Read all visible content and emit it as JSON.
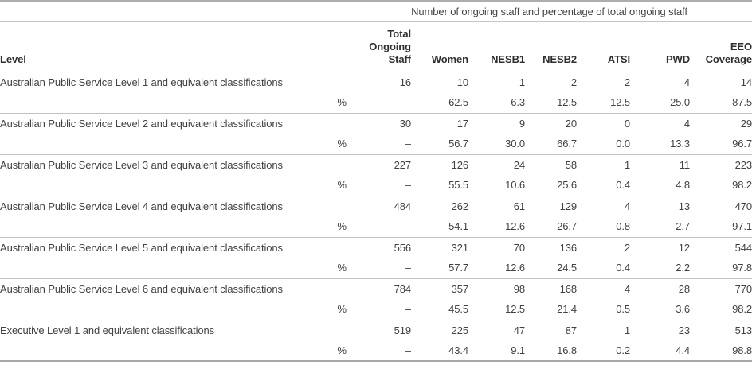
{
  "table": {
    "span_header": "Number of ongoing staff and percentage of total ongoing staff",
    "pct_symbol": "%",
    "columns": [
      "Level",
      "",
      "Total Ongoing Staff",
      "Women",
      "NESB1",
      "NESB2",
      "ATSI",
      "PWD",
      "EEO Coverage"
    ],
    "rows": [
      {
        "level": "Australian Public Service Level 1 and equivalent classifications",
        "counts": [
          "16",
          "10",
          "1",
          "2",
          "2",
          "4",
          "14"
        ],
        "percentages": [
          "–",
          "62.5",
          "6.3",
          "12.5",
          "12.5",
          "25.0",
          "87.5"
        ]
      },
      {
        "level": "Australian Public Service Level 2 and equivalent classifications",
        "counts": [
          "30",
          "17",
          "9",
          "20",
          "0",
          "4",
          "29"
        ],
        "percentages": [
          "–",
          "56.7",
          "30.0",
          "66.7",
          "0.0",
          "13.3",
          "96.7"
        ]
      },
      {
        "level": "Australian Public Service Level 3 and equivalent classifications",
        "counts": [
          "227",
          "126",
          "24",
          "58",
          "1",
          "11",
          "223"
        ],
        "percentages": [
          "–",
          "55.5",
          "10.6",
          "25.6",
          "0.4",
          "4.8",
          "98.2"
        ]
      },
      {
        "level": "Australian Public Service Level 4 and equivalent classifications",
        "counts": [
          "484",
          "262",
          "61",
          "129",
          "4",
          "13",
          "470"
        ],
        "percentages": [
          "–",
          "54.1",
          "12.6",
          "26.7",
          "0.8",
          "2.7",
          "97.1"
        ]
      },
      {
        "level": "Australian Public Service Level 5 and equivalent classifications",
        "counts": [
          "556",
          "321",
          "70",
          "136",
          "2",
          "12",
          "544"
        ],
        "percentages": [
          "–",
          "57.7",
          "12.6",
          "24.5",
          "0.4",
          "2.2",
          "97.8"
        ]
      },
      {
        "level": "Australian Public Service Level 6 and equivalent classifications",
        "counts": [
          "784",
          "357",
          "98",
          "168",
          "4",
          "28",
          "770"
        ],
        "percentages": [
          "–",
          "45.5",
          "12.5",
          "21.4",
          "0.5",
          "3.6",
          "98.2"
        ]
      },
      {
        "level": "Executive Level 1 and equivalent classifications",
        "counts": [
          "519",
          "225",
          "47",
          "87",
          "1",
          "23",
          "513"
        ],
        "percentages": [
          "–",
          "43.4",
          "9.1",
          "16.8",
          "0.2",
          "4.4",
          "98.8"
        ]
      }
    ]
  }
}
